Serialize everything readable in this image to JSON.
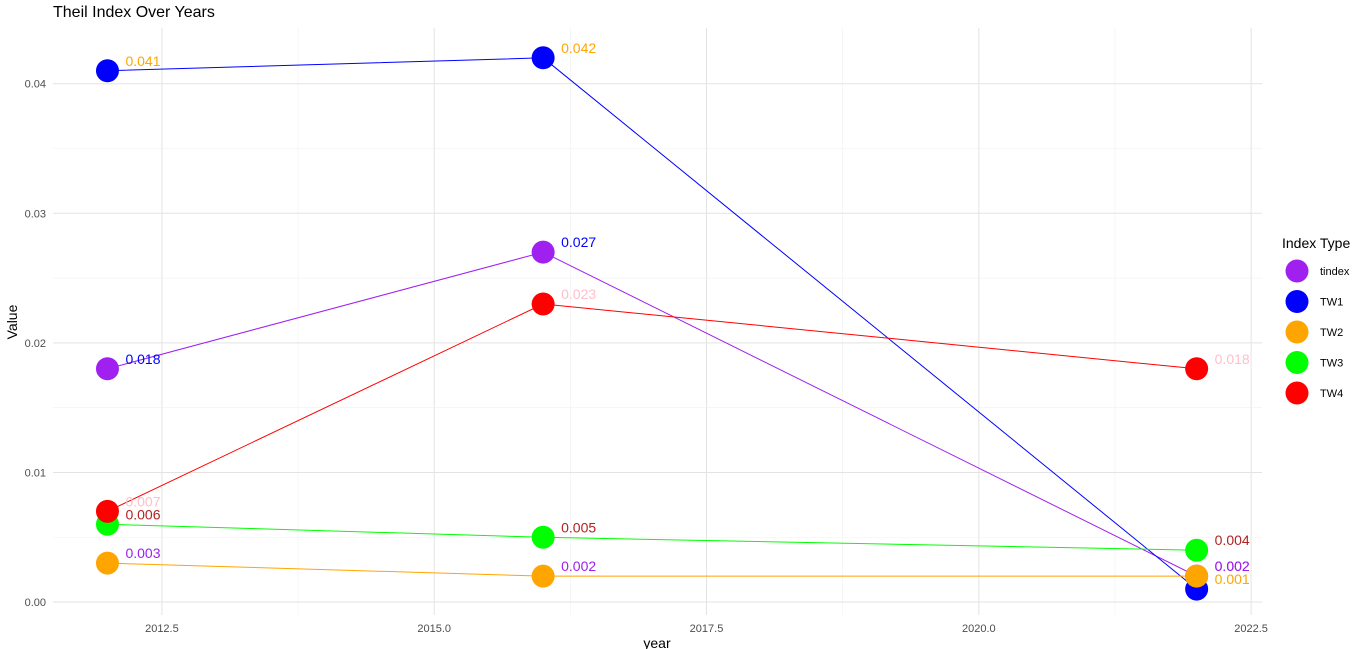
{
  "chart_data": {
    "type": "line",
    "title": "Theil Index Over Years",
    "xlabel": "year",
    "ylabel": "Value",
    "xlim": [
      2011.5,
      2022.6
    ],
    "ylim": [
      -0.001,
      0.0443
    ],
    "x_ticks_major": [
      2012.5,
      2015.0,
      2017.5,
      2020.0,
      2022.5
    ],
    "x_tick_labels": [
      "2012.5",
      "2015.0",
      "2017.5",
      "2020.0",
      "2022.5"
    ],
    "y_ticks_major": [
      0.0,
      0.01,
      0.02,
      0.03,
      0.04
    ],
    "y_tick_labels": [
      "0.00",
      "0.01",
      "0.02",
      "0.03",
      "0.04"
    ],
    "grid": true,
    "legend": {
      "title": "Index Type",
      "position": "right"
    },
    "x": [
      2012,
      2016,
      2022
    ],
    "series": [
      {
        "name": "tindex",
        "color": "#A020F0",
        "values": [
          0.018,
          0.027,
          0.002
        ],
        "labels": [
          "0.018",
          "0.027",
          "0.002"
        ],
        "label_colors": [
          "#0000FF",
          "#0000FF",
          "#A020F0"
        ]
      },
      {
        "name": "TW1",
        "color": "#0000FF",
        "values": [
          0.041,
          0.042,
          0.001
        ],
        "labels": [
          "0.041",
          "0.042",
          "0.001"
        ],
        "label_colors": [
          "#FFA500",
          "#FFA500",
          "#FFA500"
        ]
      },
      {
        "name": "TW2",
        "color": "#FFA500",
        "values": [
          0.003,
          0.002,
          0.002
        ],
        "labels": [
          "0.003",
          "0.002",
          "0.002"
        ],
        "label_colors": [
          "#A020F0",
          "#A020F0",
          "#A020F0"
        ]
      },
      {
        "name": "TW3",
        "color": "#00FF00",
        "values": [
          0.006,
          0.005,
          0.004
        ],
        "labels": [
          "0.006",
          "0.005",
          "0.004"
        ],
        "label_colors": [
          "#B22222",
          "#B22222",
          "#B22222"
        ]
      },
      {
        "name": "TW4",
        "color": "#FF0000",
        "values": [
          0.007,
          0.023,
          0.018
        ],
        "labels": [
          "0.007",
          "0.023",
          "0.018"
        ],
        "label_colors": [
          "#FFC0CB",
          "#FFC0CB",
          "#FFC0CB"
        ]
      }
    ]
  }
}
